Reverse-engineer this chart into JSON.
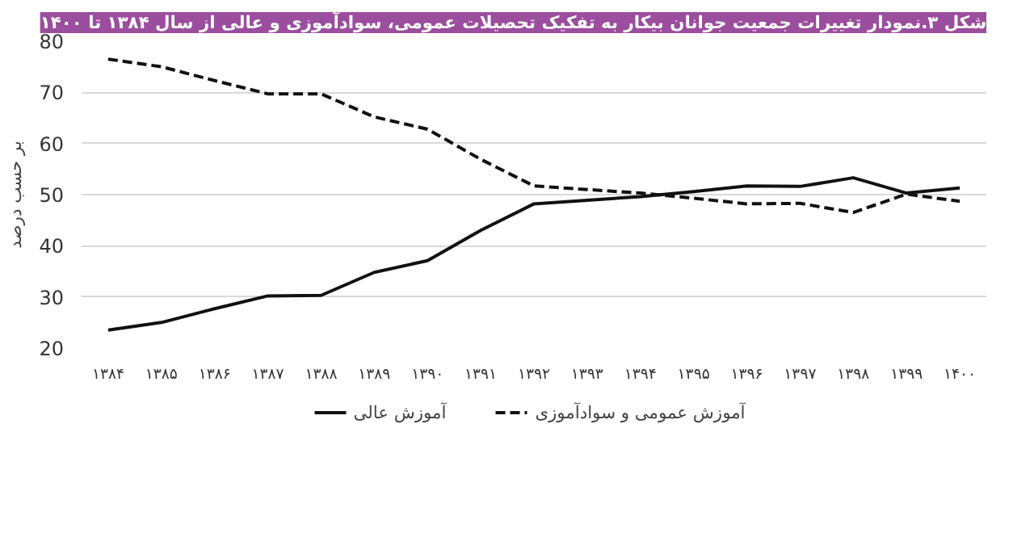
{
  "chart_data": {
    "type": "line",
    "title": "شکل ۳.نمودار تغییرات جمعیت جوانان بیکار به تفکیک تحصیلات عمومی، سوادآموزی و عالی از سال ۱۳۸۴ تا ۱۴۰۰",
    "ylabel": "بر حسب درصد",
    "categories": [
      "۱۳۸۴",
      "۱۳۸۵",
      "۱۳۸۶",
      "۱۳۸۷",
      "۱۳۸۸",
      "۱۳۸۹",
      "۱۳۹۰",
      "۱۳۹۱",
      "۱۳۹۲",
      "۱۳۹۳",
      "۱۳۹۴",
      "۱۳۹۵",
      "۱۳۹۶",
      "۱۳۹۷",
      "۱۳۹۸",
      "۱۳۹۹",
      "۱۴۰۰"
    ],
    "series": [
      {
        "name": "آموزش عالی",
        "color": "#111111",
        "line_style": "solid",
        "values": [
          23.5,
          25,
          27.7,
          30.2,
          30.3,
          34.8,
          37.1,
          43,
          48.2,
          48.9,
          49.6,
          50.6,
          51.7,
          51.6,
          53.3,
          50.3,
          51.3
        ]
      },
      {
        "name": "آموزش عمومی و سوادآموزی",
        "color": "#111111",
        "line_style": "dashed",
        "values": [
          76.5,
          75,
          72.3,
          69.7,
          69.7,
          65.2,
          62.8,
          56.9,
          51.7,
          51,
          50.3,
          49.3,
          48.2,
          48.3,
          46.5,
          50.1,
          48.7
        ]
      }
    ],
    "ylim": [
      20,
      80
    ],
    "yticks": [
      20,
      30,
      40,
      50,
      60,
      70,
      80
    ],
    "grid": "y",
    "legend": "bottom"
  }
}
